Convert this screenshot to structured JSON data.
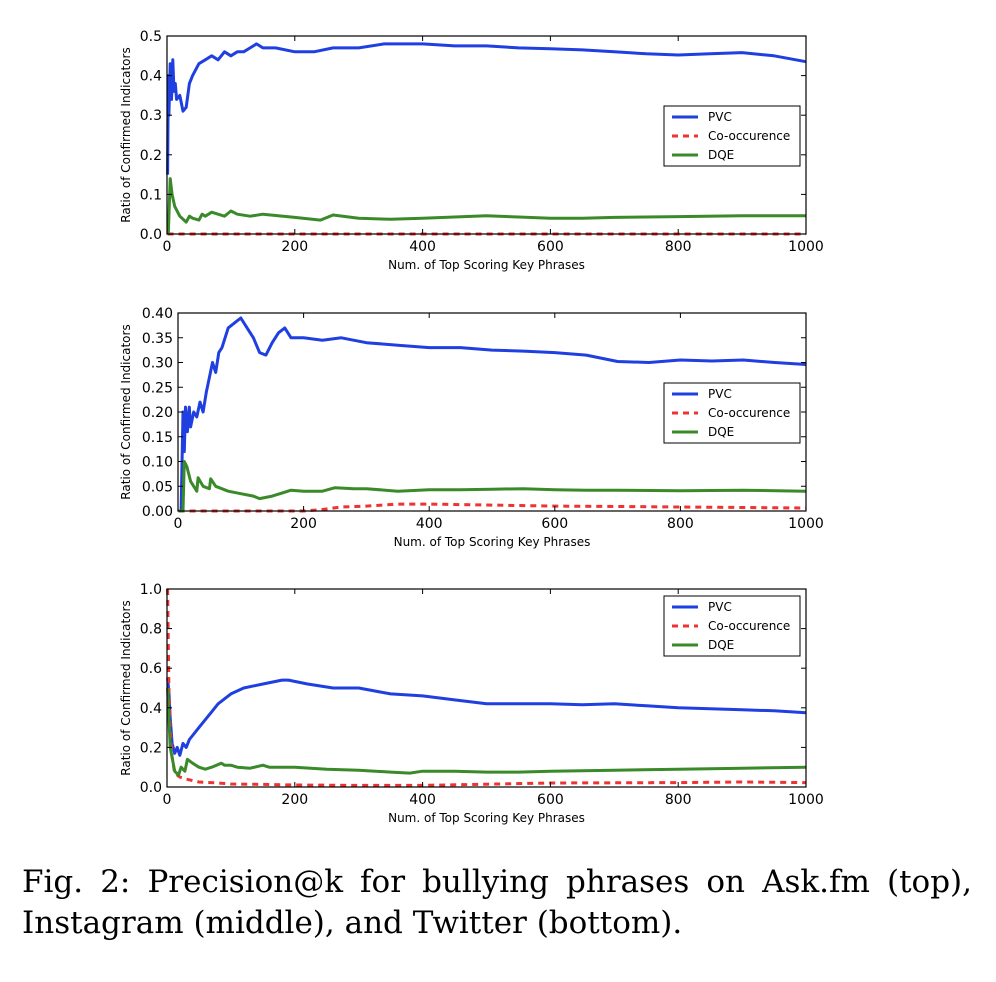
{
  "figure": {
    "caption": "Fig. 2: Precision@k for bullying phrases on Ask.fm (top), Instagram (middle), and Twitter (bottom)."
  },
  "colors": {
    "pvc": "#1f3fe0",
    "cooccurrence": "#ee3333",
    "dqe": "#3a8a2a"
  },
  "chart_data": [
    {
      "type": "line",
      "title": "",
      "xlabel": "Num. of Top Scoring Key Phrases",
      "ylabel": "Ratio of Confirmed Indicators",
      "xlim": [
        0,
        1000
      ],
      "ylim": [
        0,
        0.5
      ],
      "xticks": [
        0,
        200,
        400,
        600,
        800,
        1000
      ],
      "xtick_labels": [
        "0",
        "200",
        "400",
        "600",
        "800",
        "1000"
      ],
      "yticks": [
        0,
        0.1,
        0.2,
        0.3,
        0.4,
        0.5
      ],
      "ytick_labels": [
        "0.0",
        "0.1",
        "0.2",
        "0.3",
        "0.4",
        "0.5"
      ],
      "grid": false,
      "legend_position": "center-right",
      "series": [
        {
          "name": "PVC",
          "style": "solid",
          "color": "#1f3fe0",
          "x": [
            1,
            2,
            3,
            5,
            7,
            9,
            11,
            13,
            15,
            20,
            25,
            30,
            35,
            40,
            50,
            60,
            70,
            80,
            90,
            100,
            110,
            120,
            130,
            140,
            150,
            170,
            200,
            230,
            260,
            300,
            340,
            400,
            450,
            500,
            550,
            600,
            650,
            700,
            750,
            800,
            850,
            900,
            950,
            1000
          ],
          "y": [
            0.15,
            0.4,
            0.3,
            0.43,
            0.34,
            0.44,
            0.36,
            0.38,
            0.34,
            0.35,
            0.31,
            0.32,
            0.38,
            0.4,
            0.43,
            0.44,
            0.45,
            0.44,
            0.46,
            0.45,
            0.46,
            0.46,
            0.47,
            0.48,
            0.47,
            0.47,
            0.46,
            0.46,
            0.47,
            0.47,
            0.48,
            0.48,
            0.475,
            0.475,
            0.47,
            0.468,
            0.465,
            0.46,
            0.455,
            0.452,
            0.455,
            0.458,
            0.45,
            0.435
          ]
        },
        {
          "name": "Co-occurence",
          "style": "dashed",
          "color": "#ee3333",
          "x": [
            1,
            1000
          ],
          "y": [
            0,
            0
          ]
        },
        {
          "name": "DQE",
          "style": "solid",
          "color": "#3a8a2a",
          "x": [
            2,
            5,
            8,
            12,
            20,
            30,
            35,
            40,
            50,
            55,
            60,
            70,
            80,
            90,
            100,
            110,
            130,
            150,
            200,
            240,
            260,
            280,
            300,
            350,
            400,
            450,
            500,
            550,
            600,
            650,
            700,
            800,
            900,
            1000
          ],
          "y": [
            0.0,
            0.14,
            0.1,
            0.07,
            0.045,
            0.03,
            0.045,
            0.04,
            0.035,
            0.05,
            0.045,
            0.055,
            0.05,
            0.045,
            0.058,
            0.05,
            0.045,
            0.05,
            0.042,
            0.035,
            0.048,
            0.044,
            0.04,
            0.037,
            0.04,
            0.043,
            0.046,
            0.043,
            0.04,
            0.04,
            0.042,
            0.044,
            0.046,
            0.046
          ]
        }
      ]
    },
    {
      "type": "line",
      "title": "",
      "xlabel": "Num. of Top Scoring Key Phrases",
      "ylabel": "Ratio of Confirmed Indicators",
      "xlim": [
        0,
        1000
      ],
      "ylim": [
        0,
        0.4
      ],
      "xticks": [
        0,
        200,
        400,
        600,
        800,
        1000
      ],
      "xtick_labels": [
        "0",
        "200",
        "400",
        "600",
        "800",
        "1000"
      ],
      "yticks": [
        0,
        0.05,
        0.1,
        0.15,
        0.2,
        0.25,
        0.3,
        0.35,
        0.4
      ],
      "ytick_labels": [
        "0.00",
        "0.05",
        "0.10",
        "0.15",
        "0.20",
        "0.25",
        "0.30",
        "0.35",
        "0.40"
      ],
      "grid": false,
      "legend_position": "center-right",
      "series": [
        {
          "name": "PVC",
          "style": "solid",
          "color": "#1f3fe0",
          "x": [
            1,
            5,
            8,
            10,
            12,
            15,
            18,
            20,
            25,
            30,
            35,
            40,
            45,
            50,
            55,
            60,
            65,
            70,
            80,
            90,
            100,
            110,
            120,
            130,
            140,
            150,
            160,
            170,
            180,
            200,
            230,
            260,
            300,
            350,
            400,
            450,
            500,
            550,
            600,
            650,
            700,
            750,
            800,
            850,
            900,
            950,
            1000
          ],
          "y": [
            0,
            0,
            0.2,
            0.12,
            0.21,
            0.16,
            0.21,
            0.17,
            0.2,
            0.19,
            0.22,
            0.2,
            0.24,
            0.27,
            0.3,
            0.28,
            0.32,
            0.33,
            0.37,
            0.38,
            0.39,
            0.37,
            0.35,
            0.32,
            0.315,
            0.34,
            0.36,
            0.37,
            0.35,
            0.35,
            0.345,
            0.35,
            0.34,
            0.335,
            0.33,
            0.33,
            0.325,
            0.323,
            0.32,
            0.315,
            0.302,
            0.3,
            0.305,
            0.303,
            0.305,
            0.3,
            0.296
          ]
        },
        {
          "name": "Co-occurence",
          "style": "dashed",
          "color": "#ee3333",
          "x": [
            1,
            200,
            230,
            260,
            300,
            350,
            400,
            450,
            500,
            600,
            700,
            800,
            900,
            1000
          ],
          "y": [
            0,
            0,
            0.003,
            0.008,
            0.01,
            0.014,
            0.014,
            0.013,
            0.012,
            0.01,
            0.009,
            0.008,
            0.007,
            0.006
          ]
        },
        {
          "name": "DQE",
          "style": "solid",
          "color": "#3a8a2a",
          "x": [
            1,
            8,
            10,
            14,
            20,
            30,
            32,
            40,
            50,
            52,
            60,
            80,
            100,
            120,
            130,
            150,
            170,
            180,
            200,
            230,
            250,
            280,
            300,
            350,
            400,
            450,
            500,
            550,
            600,
            650,
            700,
            800,
            900,
            1000
          ],
          "y": [
            0,
            0,
            0.1,
            0.09,
            0.06,
            0.04,
            0.067,
            0.05,
            0.045,
            0.065,
            0.05,
            0.04,
            0.035,
            0.03,
            0.025,
            0.03,
            0.038,
            0.042,
            0.04,
            0.04,
            0.047,
            0.045,
            0.045,
            0.04,
            0.043,
            0.043,
            0.044,
            0.045,
            0.043,
            0.042,
            0.042,
            0.041,
            0.042,
            0.04
          ]
        }
      ]
    },
    {
      "type": "line",
      "title": "",
      "xlabel": "Num. of Top Scoring Key Phrases",
      "ylabel": "Ratio of Confirmed Indicators",
      "xlim": [
        0,
        1000
      ],
      "ylim": [
        0,
        1.0
      ],
      "xticks": [
        0,
        200,
        400,
        600,
        800,
        1000
      ],
      "xtick_labels": [
        "0",
        "200",
        "400",
        "600",
        "800",
        "1000"
      ],
      "yticks": [
        0,
        0.2,
        0.4,
        0.6,
        0.8,
        1.0
      ],
      "ytick_labels": [
        "0.0",
        "0.2",
        "0.4",
        "0.6",
        "0.8",
        "1.0"
      ],
      "grid": false,
      "legend_position": "top-right",
      "series": [
        {
          "name": "PVC",
          "style": "solid",
          "color": "#1f3fe0",
          "x": [
            1,
            3,
            5,
            8,
            12,
            16,
            20,
            25,
            30,
            35,
            40,
            50,
            60,
            70,
            80,
            100,
            120,
            150,
            180,
            190,
            220,
            260,
            300,
            350,
            400,
            450,
            500,
            550,
            600,
            650,
            700,
            750,
            800,
            850,
            900,
            950,
            1000
          ],
          "y": [
            0.55,
            0.48,
            0.35,
            0.22,
            0.17,
            0.2,
            0.16,
            0.22,
            0.2,
            0.24,
            0.26,
            0.3,
            0.34,
            0.38,
            0.42,
            0.47,
            0.5,
            0.52,
            0.54,
            0.54,
            0.52,
            0.5,
            0.5,
            0.47,
            0.46,
            0.44,
            0.42,
            0.42,
            0.42,
            0.415,
            0.42,
            0.41,
            0.4,
            0.395,
            0.39,
            0.385,
            0.375
          ]
        },
        {
          "name": "Co-occurence",
          "style": "dashed",
          "color": "#ee3333",
          "x": [
            1,
            3,
            5,
            8,
            12,
            20,
            30,
            50,
            80,
            100,
            150,
            200,
            300,
            400,
            500,
            600,
            700,
            800,
            900,
            1000
          ],
          "y": [
            1.0,
            0.5,
            0.3,
            0.15,
            0.07,
            0.05,
            0.04,
            0.025,
            0.02,
            0.015,
            0.013,
            0.01,
            0.008,
            0.008,
            0.014,
            0.02,
            0.021,
            0.022,
            0.025,
            0.022
          ]
        },
        {
          "name": "DQE",
          "style": "solid",
          "color": "#3a8a2a",
          "x": [
            1,
            3,
            5,
            8,
            12,
            18,
            22,
            28,
            32,
            40,
            50,
            60,
            70,
            85,
            90,
            100,
            110,
            130,
            150,
            160,
            200,
            250,
            300,
            350,
            380,
            400,
            450,
            500,
            550,
            600,
            700,
            800,
            900,
            1000
          ],
          "y": [
            0.5,
            0.35,
            0.2,
            0.15,
            0.08,
            0.06,
            0.1,
            0.08,
            0.14,
            0.12,
            0.1,
            0.09,
            0.1,
            0.12,
            0.11,
            0.11,
            0.1,
            0.095,
            0.11,
            0.1,
            0.1,
            0.09,
            0.085,
            0.075,
            0.07,
            0.08,
            0.08,
            0.075,
            0.075,
            0.08,
            0.085,
            0.09,
            0.095,
            0.1
          ]
        }
      ]
    }
  ]
}
